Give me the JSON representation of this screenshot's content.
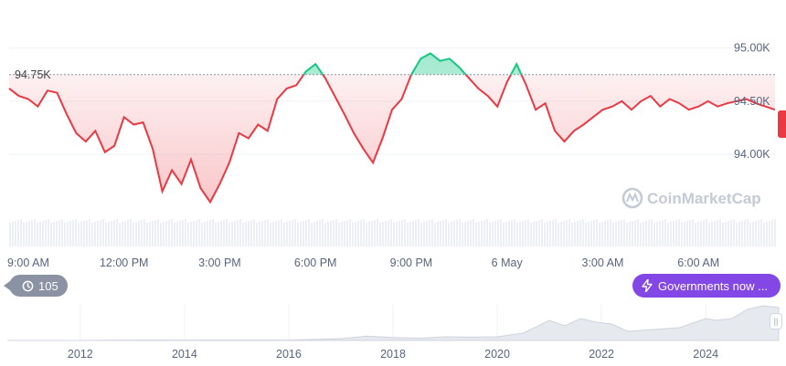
{
  "chart_data": {
    "type": "line",
    "reference_label": "94.75K",
    "reference_value": 94.75,
    "y_unit": "K",
    "y_ticks": [
      "95.00K",
      "94.50K",
      "94.00K"
    ],
    "y_tick_values": [
      95.0,
      94.5,
      94.0
    ],
    "ylim": [
      93.45,
      95.35
    ],
    "x_ticks": [
      "9:00 AM",
      "12:00 PM",
      "3:00 PM",
      "6:00 PM",
      "9:00 PM",
      "6 May",
      "3:00 AM",
      "6:00 AM"
    ],
    "x_tick_hours": [
      9,
      12,
      15,
      18,
      21,
      24,
      27,
      30
    ],
    "x_range_hours": [
      8.4,
      32.4
    ],
    "series": [
      {
        "x": [
          8.4,
          8.7,
          9.0,
          9.3,
          9.6,
          9.9,
          10.2,
          10.5,
          10.8,
          11.1,
          11.4,
          11.7,
          12.0,
          12.3,
          12.6,
          12.9,
          13.2,
          13.5,
          13.8,
          14.1,
          14.4,
          14.7,
          15.0,
          15.3,
          15.6,
          15.9,
          16.2,
          16.5,
          16.8,
          17.1,
          17.4,
          17.7,
          18.0,
          18.3,
          18.6,
          18.9,
          19.2,
          19.5,
          19.8,
          20.1,
          20.4,
          20.7,
          21.0,
          21.3,
          21.6,
          21.9,
          22.2,
          22.5,
          22.8,
          23.1,
          23.4,
          23.7,
          24.0,
          24.3,
          24.6,
          24.9,
          25.2,
          25.5,
          25.8,
          26.1,
          26.4,
          26.7,
          27.0,
          27.3,
          27.6,
          27.9,
          28.2,
          28.5,
          28.8,
          29.1,
          29.4,
          29.7,
          30.0,
          30.3,
          30.6,
          30.9,
          31.2,
          31.5,
          31.8,
          32.1,
          32.4
        ],
        "y": [
          94.62,
          94.55,
          94.52,
          94.45,
          94.6,
          94.58,
          94.38,
          94.2,
          94.12,
          94.22,
          94.02,
          94.08,
          94.35,
          94.28,
          94.3,
          94.05,
          93.65,
          93.85,
          93.72,
          93.95,
          93.68,
          93.55,
          93.72,
          93.92,
          94.2,
          94.15,
          94.28,
          94.22,
          94.52,
          94.62,
          94.65,
          94.78,
          94.85,
          94.72,
          94.55,
          94.38,
          94.2,
          94.05,
          93.92,
          94.15,
          94.42,
          94.52,
          94.75,
          94.9,
          94.95,
          94.88,
          94.9,
          94.82,
          94.72,
          94.62,
          94.55,
          94.45,
          94.68,
          94.85,
          94.65,
          94.42,
          94.48,
          94.22,
          94.12,
          94.22,
          94.28,
          94.35,
          94.42,
          94.45,
          94.5,
          94.42,
          94.5,
          94.55,
          94.45,
          94.52,
          94.48,
          94.42,
          94.45,
          94.5,
          94.45,
          94.48,
          94.5,
          94.52,
          94.48,
          94.45,
          94.42
        ]
      }
    ],
    "overview": {
      "x_ticks": [
        "2012",
        "2014",
        "2016",
        "2018",
        "2020",
        "2022",
        "2024"
      ],
      "x_tick_years": [
        2012,
        2014,
        2016,
        2018,
        2020,
        2022,
        2024
      ],
      "x_range_years": [
        2010.6,
        2025.4
      ],
      "x": [
        2010.6,
        2012,
        2013,
        2014,
        2015,
        2016,
        2017,
        2017.5,
        2018,
        2018.5,
        2019,
        2019.5,
        2020,
        2020.5,
        2021,
        2021.3,
        2021.6,
        2021.9,
        2022.2,
        2022.5,
        2023,
        2023.5,
        2024,
        2024.2,
        2024.5,
        2024.8,
        2025.1,
        2025.4
      ],
      "y": [
        0,
        0,
        0.01,
        0.01,
        0.01,
        0.01,
        0.05,
        0.12,
        0.08,
        0.06,
        0.1,
        0.09,
        0.1,
        0.2,
        0.55,
        0.4,
        0.6,
        0.5,
        0.45,
        0.25,
        0.3,
        0.35,
        0.6,
        0.55,
        0.6,
        0.85,
        0.95,
        0.9
      ]
    }
  },
  "brand": {
    "name": "CoinMarketCap"
  },
  "history": {
    "count": "105"
  },
  "news": {
    "label": "Governments now ..."
  },
  "colors": {
    "up": "#16c784",
    "down": "#ea3943",
    "accent": "#8247e5",
    "reference": "#58667e"
  }
}
